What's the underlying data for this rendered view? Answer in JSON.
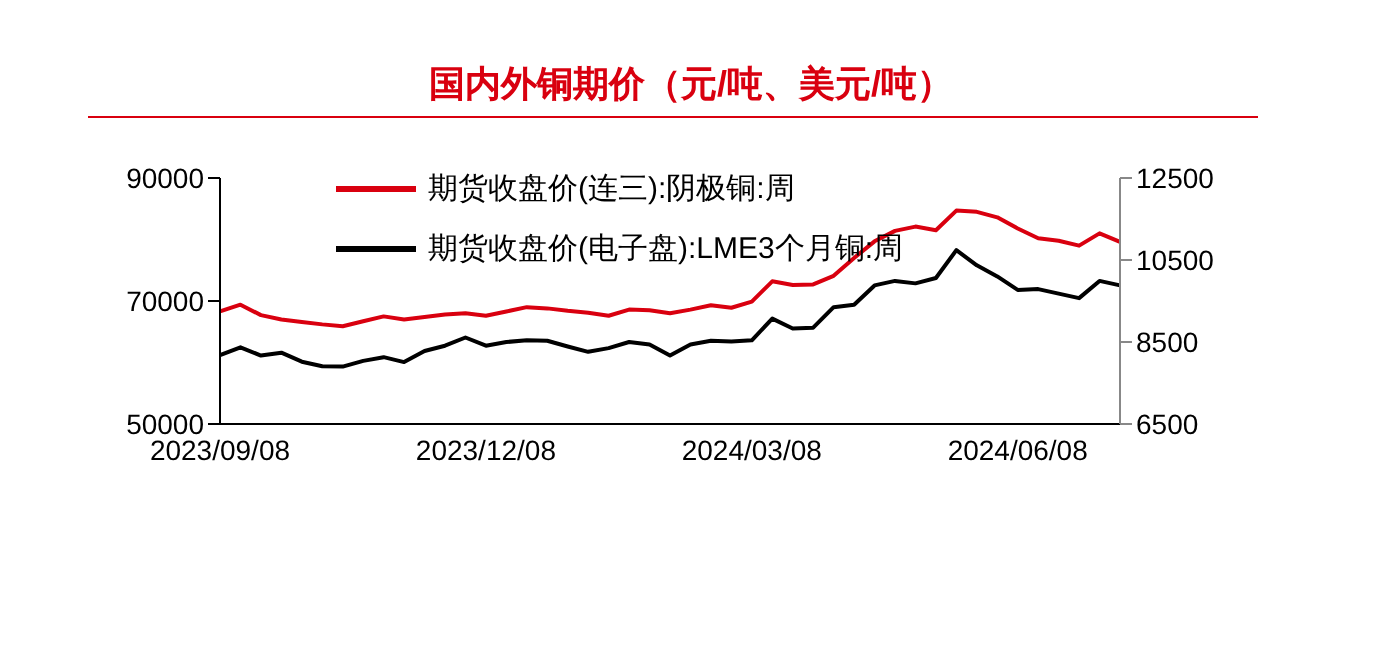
{
  "chart_data": {
    "type": "line",
    "title": "国内外铜期价（元/吨、美元/吨）",
    "categories": [
      "2023/09/08",
      null,
      null,
      null,
      null,
      null,
      null,
      null,
      null,
      null,
      null,
      null,
      null,
      "2023/12/08",
      null,
      null,
      null,
      null,
      null,
      null,
      null,
      null,
      null,
      null,
      null,
      null,
      "2024/03/08",
      null,
      null,
      null,
      null,
      null,
      null,
      null,
      null,
      null,
      null,
      null,
      null,
      "2024/06/08",
      null,
      null,
      null,
      null,
      null
    ],
    "series": [
      {
        "name": "期货收盘价(连三):阴极铜:周",
        "color": "#d9000f",
        "values": [
          68300,
          69400,
          67700,
          67000,
          66600,
          66200,
          65900,
          66700,
          67500,
          67000,
          67400,
          67800,
          68000,
          67600,
          68300,
          69000,
          68800,
          68400,
          68100,
          67600,
          68600,
          68500,
          68000,
          68600,
          69300,
          68900,
          69900,
          73200,
          72600,
          72700,
          74100,
          77000,
          79700,
          81400,
          82100,
          81500,
          84700,
          84500,
          83600,
          81800,
          80200,
          79800,
          79000,
          81000,
          79600
        ]
      },
      {
        "name": "期货收盘价(电子盘):LME3个月铜:周",
        "color": "#000000",
        "axis": "y2",
        "values": [
          8180,
          8370,
          8170,
          8240,
          8020,
          7910,
          7900,
          8040,
          8130,
          8010,
          8280,
          8410,
          8610,
          8410,
          8500,
          8540,
          8530,
          8390,
          8260,
          8350,
          8500,
          8440,
          8170,
          8440,
          8530,
          8510,
          8540,
          9070,
          8830,
          8850,
          9350,
          9410,
          9880,
          9990,
          9930,
          10060,
          10740,
          10370,
          10100,
          9770,
          9790,
          9680,
          9570,
          9990,
          9880
        ]
      }
    ],
    "ylim": [
      50000,
      90000
    ],
    "yticks": [
      50000,
      70000,
      90000
    ],
    "y2lim": [
      6500,
      12500
    ],
    "y2ticks": [
      6500,
      8500,
      10500,
      12500
    ],
    "legend": "top"
  }
}
